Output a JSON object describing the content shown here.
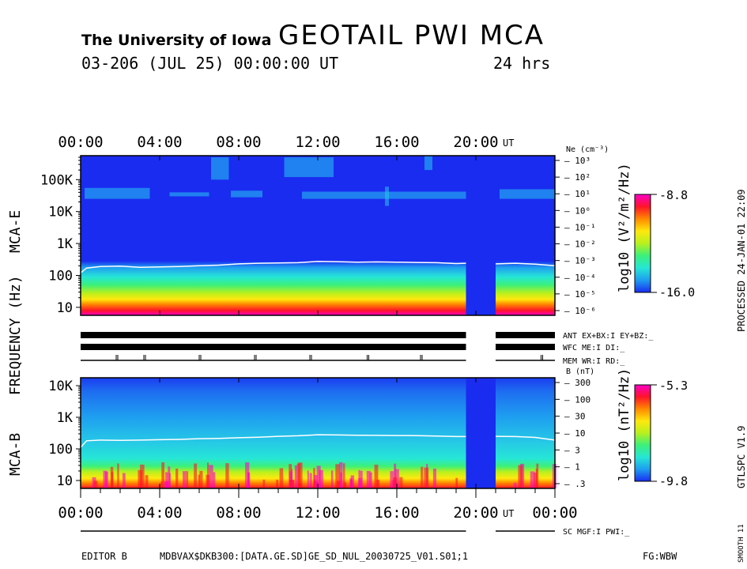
{
  "header": {
    "institution": "The University of Iowa",
    "title": "GEOTAIL  PWI  MCA",
    "date_line": "03-206  (JUL  25)  00:00:00  UT",
    "duration": "24  hrs"
  },
  "side_text": {
    "processed": "PROCESSED  24-JAN-01   22:09",
    "version": "GTLSPC    V1.9",
    "smooth": "SMOOTH 11"
  },
  "footer": {
    "editor": "EDITOR B",
    "file": "MDBVAX$DKB300:[DATA.GE.SD]GE_SD_NUL_20030725_V01.S01;1",
    "flags": "FG:WBW"
  },
  "colors": {
    "panel_blue": "#1a2cf0",
    "gap_blue": "#1a2cf0",
    "trace": "#ffffff",
    "colormap": [
      "#1a2cf0",
      "#1e9ef0",
      "#26e6d6",
      "#3cf07a",
      "#b8f01e",
      "#ffe80e",
      "#ff8a00",
      "#ff1428",
      "#ff00c8"
    ]
  },
  "chart_data": {
    "type": "heatmap",
    "y_axis_title": "FREQUENCY  (Hz)",
    "x_axis": {
      "range_hours": [
        0,
        24
      ],
      "tick_labels": [
        "00:00",
        "04:00",
        "08:00",
        "12:00",
        "16:00",
        "20:00",
        "00:00"
      ],
      "tick_hours": [
        0,
        4,
        8,
        12,
        16,
        20,
        24
      ],
      "unit_label": "UT"
    },
    "data_gap_hours": [
      19.5,
      21.0
    ],
    "panels": [
      {
        "name": "MCA-E",
        "y_range_hz": [
          5.62,
          562000
        ],
        "y_tick_labels": [
          "10",
          "100",
          "1K",
          "10K",
          "100K"
        ],
        "y_tick_values": [
          10,
          100,
          1000,
          10000,
          100000
        ],
        "colorbar": {
          "label": "log10 (V²/m²/Hz)",
          "max_label": "-8.8",
          "min_label": "-16.0",
          "range": [
            -16.0,
            -8.8
          ]
        },
        "right_axis": {
          "title": "Ne (cm⁻³)",
          "tick_labels": [
            "10³",
            "10²",
            "10¹",
            "10⁰",
            "10⁻¹",
            "10⁻²",
            "10⁻³",
            "10⁻⁴",
            "10⁻⁵",
            "10⁻⁶"
          ],
          "tick_values": [
            1000,
            100,
            10,
            1,
            0.1,
            0.01,
            0.001,
            0.0001,
            1e-05,
            1e-06
          ]
        },
        "trace_hz": [
          [
            0.0,
            120
          ],
          [
            0.3,
            170
          ],
          [
            1.0,
            190
          ],
          [
            2.0,
            195
          ],
          [
            3.0,
            180
          ],
          [
            4.0,
            185
          ],
          [
            5.0,
            190
          ],
          [
            6.0,
            200
          ],
          [
            7.0,
            210
          ],
          [
            8.0,
            230
          ],
          [
            9.0,
            240
          ],
          [
            10.0,
            245
          ],
          [
            11.0,
            250
          ],
          [
            12.0,
            275
          ],
          [
            13.0,
            270
          ],
          [
            14.0,
            260
          ],
          [
            15.0,
            265
          ],
          [
            16.0,
            260
          ],
          [
            17.0,
            255
          ],
          [
            18.0,
            250
          ],
          [
            19.0,
            235
          ],
          [
            19.5,
            240
          ],
          [
            21.0,
            230
          ],
          [
            22.0,
            240
          ],
          [
            23.0,
            225
          ],
          [
            24.0,
            200
          ]
        ]
      },
      {
        "name": "MCA-B",
        "y_range_hz": [
          5.62,
          17800
        ],
        "y_tick_labels": [
          "10",
          "100",
          "1K",
          "10K"
        ],
        "y_tick_values": [
          10,
          100,
          1000,
          10000
        ],
        "colorbar": {
          "label": "log10 (nT²/Hz)",
          "max_label": "-5.3",
          "min_label": "-9.8",
          "range": [
            -9.8,
            -5.3
          ]
        },
        "right_axis": {
          "title": "B (nT)",
          "tick_labels": [
            "300",
            "100",
            "30",
            "10",
            "3",
            "1",
            ".3"
          ],
          "tick_values": [
            300,
            100,
            30,
            10,
            3,
            1,
            0.3
          ]
        },
        "trace_hz": [
          [
            0.0,
            110
          ],
          [
            0.3,
            180
          ],
          [
            1.0,
            190
          ],
          [
            2.0,
            185
          ],
          [
            3.0,
            190
          ],
          [
            4.0,
            195
          ],
          [
            5.0,
            200
          ],
          [
            6.0,
            210
          ],
          [
            7.0,
            215
          ],
          [
            8.0,
            225
          ],
          [
            9.0,
            235
          ],
          [
            10.0,
            250
          ],
          [
            11.0,
            260
          ],
          [
            12.0,
            280
          ],
          [
            13.0,
            275
          ],
          [
            14.0,
            270
          ],
          [
            15.0,
            268
          ],
          [
            16.0,
            265
          ],
          [
            17.0,
            262
          ],
          [
            18.0,
            255
          ],
          [
            19.0,
            245
          ],
          [
            19.5,
            245
          ],
          [
            21.0,
            250
          ],
          [
            22.0,
            245
          ],
          [
            23.0,
            230
          ],
          [
            24.0,
            190
          ]
        ]
      }
    ],
    "status_lines": [
      {
        "name": "ANT",
        "label": "ANT EX+BX:I  EY+BZ:_",
        "segments": [
          [
            0,
            19.5
          ],
          [
            21.0,
            24
          ]
        ]
      },
      {
        "name": "WFC",
        "label": "WFC ME:I     DI:_",
        "segments": [
          [
            0,
            19.5
          ],
          [
            21.0,
            24
          ]
        ]
      },
      {
        "name": "MEM",
        "label": "MEM WR:I     RD:_",
        "segments": [
          [
            0,
            19.5
          ],
          [
            21.0,
            24
          ]
        ],
        "marks_hours": [
          1.8,
          3.2,
          6.0,
          8.8,
          11.6,
          14.5,
          17.2,
          23.3
        ]
      },
      {
        "name": "SC",
        "label": "SC MGF:I    PWI:_",
        "segments": [
          [
            0,
            19.5
          ],
          [
            21.0,
            24
          ]
        ]
      }
    ]
  }
}
